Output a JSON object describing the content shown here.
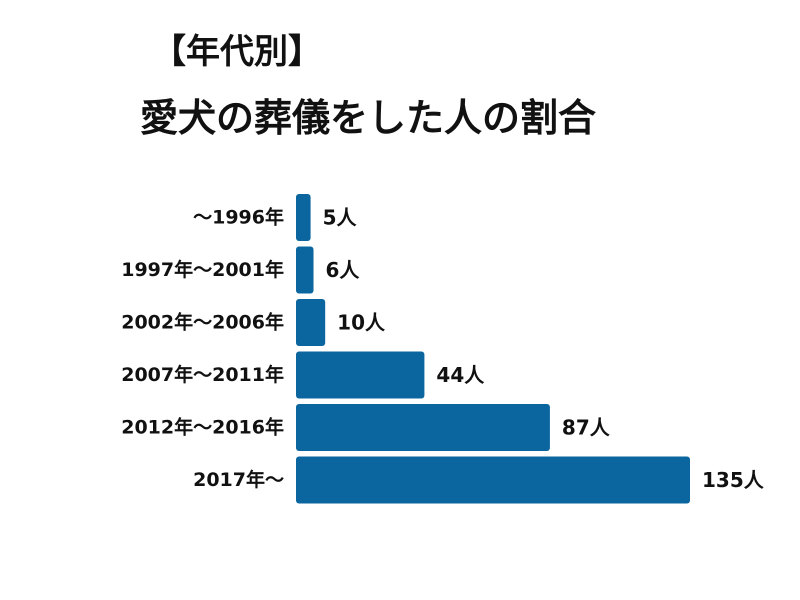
{
  "title": {
    "line1": "【年代別】",
    "line2": "愛犬の葬儀をした人の割合"
  },
  "colors": {
    "bar": "#0b669f",
    "text": "#111111",
    "background": "#ffffff"
  },
  "chart_data": {
    "type": "bar",
    "orientation": "horizontal",
    "title": "【年代別】愛犬の葬儀をした人の割合",
    "categories": [
      "〜1996年",
      "1997年〜2001年",
      "2002年〜2006年",
      "2007年〜2011年",
      "2012年〜2016年",
      "2017年〜"
    ],
    "values": [
      5,
      6,
      10,
      44,
      87,
      135
    ],
    "value_labels": [
      "5人",
      "6人",
      "10人",
      "44人",
      "87人",
      "135人"
    ],
    "unit": "人",
    "xlim": [
      0,
      135
    ],
    "grid": false,
    "legend": "none"
  }
}
